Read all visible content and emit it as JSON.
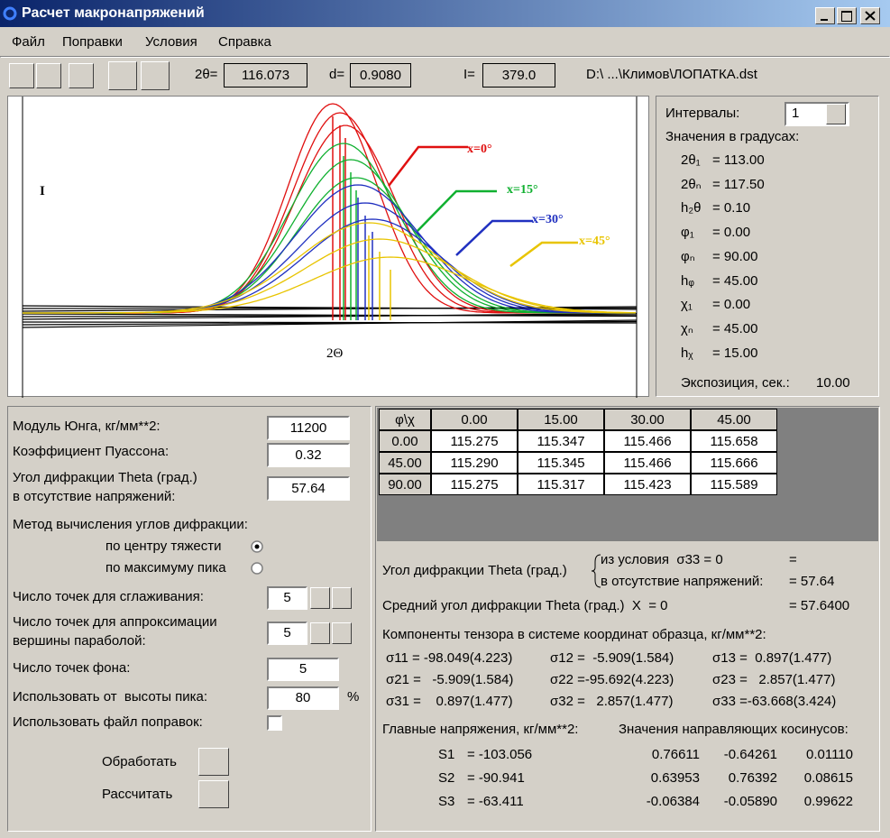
{
  "window": {
    "title": "Расчет макронапряжений"
  },
  "menu": {
    "items": [
      "Файл",
      "Поправки",
      "Условия",
      "Справка"
    ]
  },
  "toolbar": {
    "two_theta": {
      "label": "2θ=",
      "value": "116.073"
    },
    "d": {
      "label": "d=",
      "value": "0.9080"
    },
    "intensity": {
      "label": "I=",
      "value": "379.0"
    },
    "file": "D:\\ ...\\Климов\\ЛОПАТКА.dst"
  },
  "plot": {
    "y_label": "I",
    "x_label": "2Θ",
    "curve_labels": [
      {
        "text": "x=0°",
        "color": "#e01010"
      },
      {
        "text": "x=15°",
        "color": "#10b030"
      },
      {
        "text": "x=30°",
        "color": "#2030c0"
      },
      {
        "text": "x=45°",
        "color": "#e8c400"
      }
    ]
  },
  "intervals": {
    "label": "Интервалы:",
    "selected": "1",
    "units_note": "Значения в градусах:",
    "rows": [
      {
        "name": "2θ₁",
        "value": "= 113.00"
      },
      {
        "name": "2θₙ",
        "value": "= 117.50"
      },
      {
        "name": "h₂θ",
        "value": "= 0.10"
      },
      {
        "name": "φ₁",
        "value": "= 0.00"
      },
      {
        "name": "φₙ",
        "value": "= 90.00"
      },
      {
        "name": "hᵩ",
        "value": "= 45.00"
      },
      {
        "name": "χ₁",
        "value": "= 0.00"
      },
      {
        "name": "χₙ",
        "value": "= 45.00"
      },
      {
        "name": "hᵪ",
        "value": "= 15.00"
      }
    ],
    "exposure": {
      "label": "Экспозиция, сек.:",
      "value": "10.00"
    }
  },
  "parameters": {
    "young": {
      "label": "Модуль Юнга, кг/мм**2:",
      "value": "11200"
    },
    "poisson": {
      "label": "Коэффициент Пуассона:",
      "value": "0.32"
    },
    "theta0": {
      "label": [
        "Угол дифракции Theta (град.)",
        "в отсутствие напряжений:"
      ],
      "value": "57.64"
    },
    "method": {
      "label": "Метод вычисления углов дифракции:",
      "options": [
        "по центру тяжести",
        "по максимуму пика"
      ],
      "selected": 0
    },
    "smoothing": {
      "label": "Число точек для сглаживания:",
      "value": "5"
    },
    "parabola": {
      "label": [
        "Число точек для аппроксимации",
        "вершины параболой:"
      ],
      "value": "5"
    },
    "background": {
      "label": "Число точек фона:",
      "value": "5"
    },
    "peak_height": {
      "label": "Использовать от  высоты пика:",
      "value": "80",
      "unit": "%"
    },
    "corrections_file": {
      "label": "Использовать файл поправок:",
      "checked": false
    },
    "process": "Обработать",
    "calculate": "Рассчитать"
  },
  "table": {
    "header": [
      "φ\\χ",
      "0.00",
      "15.00",
      "30.00",
      "45.00"
    ],
    "rows": [
      [
        "0.00",
        "115.275",
        "115.347",
        "115.466",
        "115.658"
      ],
      [
        "45.00",
        "115.290",
        "115.345",
        "115.466",
        "115.666"
      ],
      [
        "90.00",
        "115.275",
        "115.317",
        "115.423",
        "115.589"
      ]
    ]
  },
  "results": {
    "theta_label": "Угол дифракции Theta (град.)",
    "cond1": "из условия  σ33 = 0",
    "cond1_value": "=",
    "cond2": "в отсутствие напряжений:",
    "cond2_value": "= 57.64",
    "mean_label": "Средний угол дифракции Theta (град.)  Χ  = 0",
    "mean_value": "= 57.6400",
    "tensor_label": "Компоненты тензора в системе координат образца, кг/мм**2:",
    "tensor": [
      [
        "σ11 = -98.049(4.223)",
        "σ12 =  -5.909(1.584)",
        "σ13 =  0.897(1.477)"
      ],
      [
        "σ21 =   -5.909(1.584)",
        "σ22 =-95.692(4.223)",
        "σ23 =   2.857(1.477)"
      ],
      [
        "σ31 =    0.897(1.477)",
        "σ32 =   2.857(1.477)",
        "σ33 =-63.668(3.424)"
      ]
    ],
    "principal_label": "Главные напряжения, кг/мм**2:",
    "cosines_label": "Значения направляющих косинусов:",
    "principal": [
      {
        "name": "S1",
        "value": "= -103.056",
        "cosines": [
          "0.76611",
          "-0.64261",
          "0.01110"
        ]
      },
      {
        "name": "S2",
        "value": "= -90.941",
        "cosines": [
          "0.63953",
          "0.76392",
          "0.08615"
        ]
      },
      {
        "name": "S3",
        "value": "= -63.411",
        "cosines": [
          "-0.06384",
          "-0.05890",
          "0.99622"
        ]
      }
    ]
  }
}
